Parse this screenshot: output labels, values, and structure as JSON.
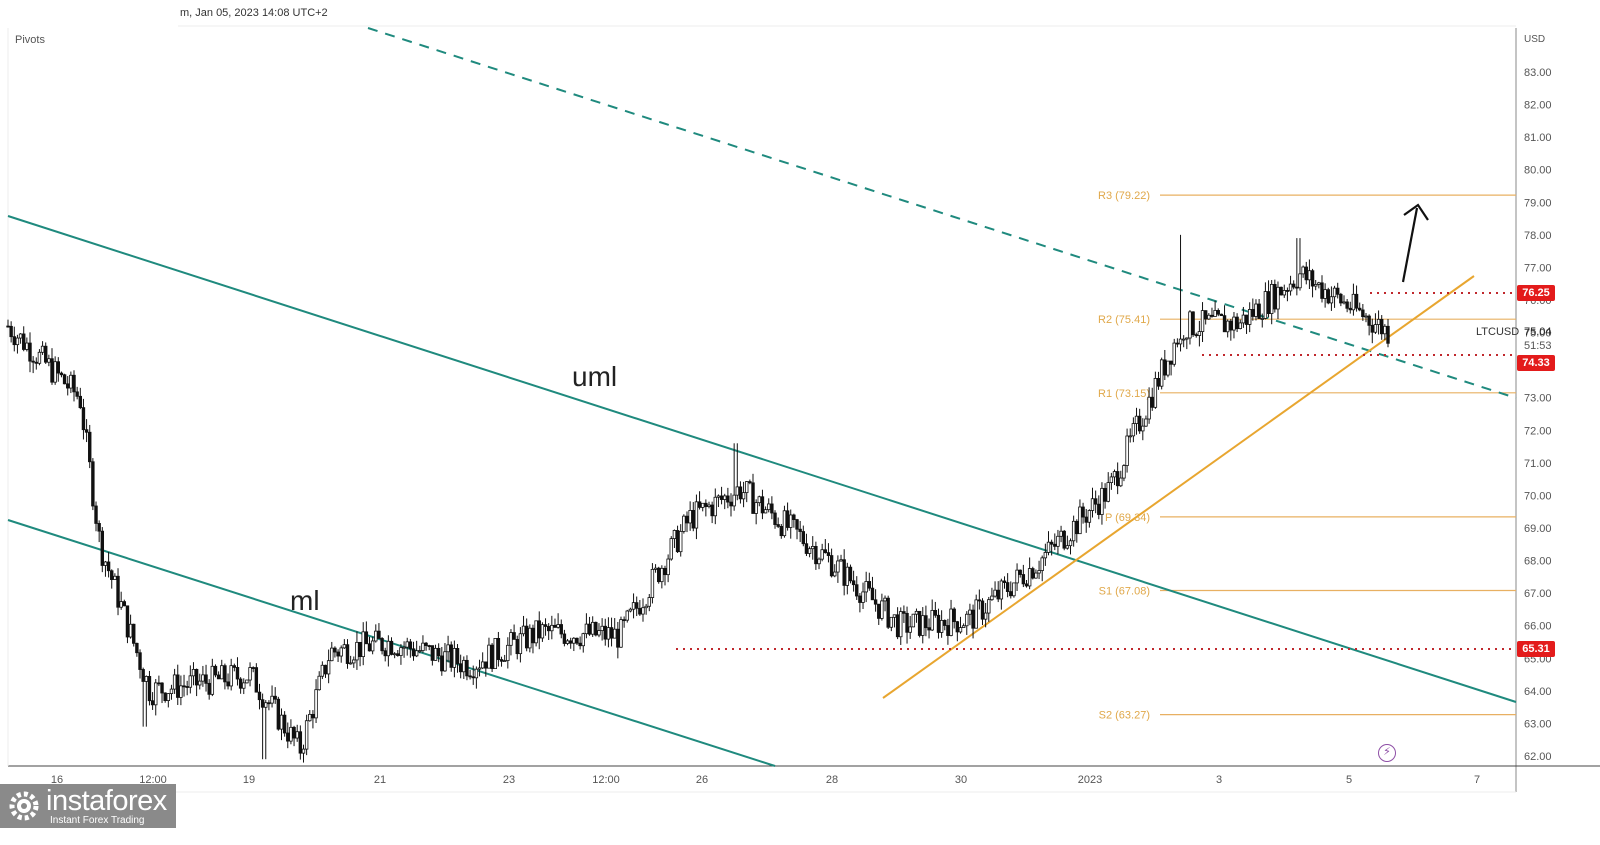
{
  "header": {
    "datetime": "m, Jan 05, 2023 14:08 UTC+2",
    "indicator": "Pivots"
  },
  "price_axis": {
    "currency": "USD",
    "ticks": [
      "83.00",
      "82.00",
      "81.00",
      "80.00",
      "79.00",
      "78.00",
      "77.00",
      "76.00",
      "75.00",
      "74.00",
      "73.00",
      "72.00",
      "71.00",
      "70.00",
      "69.00",
      "68.00",
      "67.00",
      "66.00",
      "65.00",
      "64.00",
      "63.00",
      "62.00"
    ]
  },
  "time_axis": {
    "ticks": [
      "16",
      "12:00",
      "19",
      "21",
      "23",
      "12:00",
      "26",
      "28",
      "30",
      "2023",
      "3",
      "5",
      "7"
    ]
  },
  "symbol": "LTCUSD",
  "last_price": "75.04",
  "countdown": "51:53",
  "price_tags": [
    {
      "label": "76.25",
      "color": "#e31b1b"
    },
    {
      "label": "74.33",
      "color": "#e31b1b"
    },
    {
      "label": "65.31",
      "color": "#e31b1b"
    }
  ],
  "pivots": [
    {
      "name": "R3",
      "label": "R3 (79.22)",
      "value": 79.22
    },
    {
      "name": "R2",
      "label": "R2 (75.41)",
      "value": 75.41
    },
    {
      "name": "R1",
      "label": "R1 (73.15)",
      "value": 73.15
    },
    {
      "name": "P",
      "label": "P (69.34)",
      "value": 69.34
    },
    {
      "name": "S1",
      "label": "S1 (67.08)",
      "value": 67.08
    },
    {
      "name": "S2",
      "label": "S2 (63.27)",
      "value": 63.27
    }
  ],
  "annotations": {
    "uml": "uml",
    "ml": "ml"
  },
  "logo": {
    "name": "instaforex",
    "tagline": "Instant Forex Trading"
  },
  "colors": {
    "channel": "#1f8a7e",
    "pivot": "#e8b062",
    "uptrend": "#e8a630",
    "level": "#c0282d",
    "tag": "#e31b1b"
  },
  "chart_data": {
    "type": "candlestick",
    "title": "LTCUSD",
    "ylabel": "USD",
    "ylim": [
      61.7,
      83.5
    ],
    "x_ticks": [
      "16",
      "12:00",
      "19",
      "21",
      "23",
      "12:00",
      "26",
      "28",
      "30",
      "2023",
      "3",
      "5",
      "7"
    ],
    "approx_close_path": [
      {
        "x": "Dec 15",
        "price": 75.2
      },
      {
        "x": "Dec 16",
        "price": 73.0
      },
      {
        "x": "Dec 17",
        "price": 68.5
      },
      {
        "x": "Dec 18",
        "price": 64.0
      },
      {
        "x": "Dec 19",
        "price": 64.5
      },
      {
        "x": "Dec 20",
        "price": 62.2
      },
      {
        "x": "Dec 21",
        "price": 65.2
      },
      {
        "x": "Dec 22",
        "price": 65.5
      },
      {
        "x": "Dec 23",
        "price": 64.8
      },
      {
        "x": "Dec 24",
        "price": 65.8
      },
      {
        "x": "Dec 25",
        "price": 65.7
      },
      {
        "x": "Dec 26",
        "price": 69.3
      },
      {
        "x": "Dec 27",
        "price": 70.2
      },
      {
        "x": "Dec 28",
        "price": 68.0
      },
      {
        "x": "Dec 29",
        "price": 66.0
      },
      {
        "x": "Dec 30",
        "price": 66.2
      },
      {
        "x": "Dec 31",
        "price": 68.0
      },
      {
        "x": "Jan 1",
        "price": 70.2
      },
      {
        "x": "Jan 2",
        "price": 75.2
      },
      {
        "x": "Jan 3",
        "price": 75.3
      },
      {
        "x": "Jan 4",
        "price": 76.8
      },
      {
        "x": "Jan 5",
        "price": 75.04
      }
    ],
    "horizontal_levels": [
      76.25,
      74.33,
      65.31
    ],
    "pivot_levels": {
      "R3": 79.22,
      "R2": 75.41,
      "R1": 73.15,
      "P": 69.34,
      "S1": 67.08,
      "S2": 63.27
    },
    "trendlines": [
      "uml (upper median line)",
      "ml (median line)",
      "dashed upper channel line",
      "ascending support line"
    ],
    "annotation": "up arrow projecting toward R3"
  }
}
